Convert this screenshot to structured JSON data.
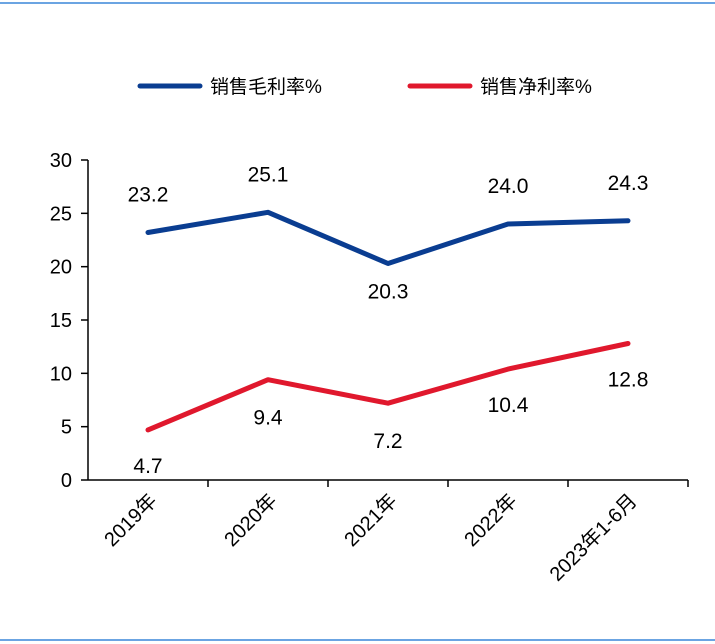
{
  "chart_data": {
    "type": "line",
    "categories": [
      "2019年",
      "2020年",
      "2021年",
      "2022年",
      "2023年1-6月"
    ],
    "series": [
      {
        "name": "销售毛利率%",
        "color": "#0a3d91",
        "values": [
          23.2,
          25.1,
          20.3,
          24.0,
          24.3
        ]
      },
      {
        "name": "销售净利率%",
        "color": "#e0182d",
        "values": [
          4.7,
          9.4,
          7.2,
          10.4,
          12.8
        ]
      }
    ],
    "data_labels": [
      [
        "23.2",
        "25.1",
        "20.3",
        "24.0",
        "24.3"
      ],
      [
        "4.7",
        "9.4",
        "7.2",
        "10.4",
        "12.8"
      ]
    ],
    "y_ticks": [
      "0",
      "5",
      "10",
      "15",
      "20",
      "25",
      "30"
    ],
    "ylim": [
      0,
      30
    ],
    "grid": false,
    "legend_position": "top"
  },
  "colors": {
    "border": "#3a86d8",
    "axis": "#000000"
  }
}
